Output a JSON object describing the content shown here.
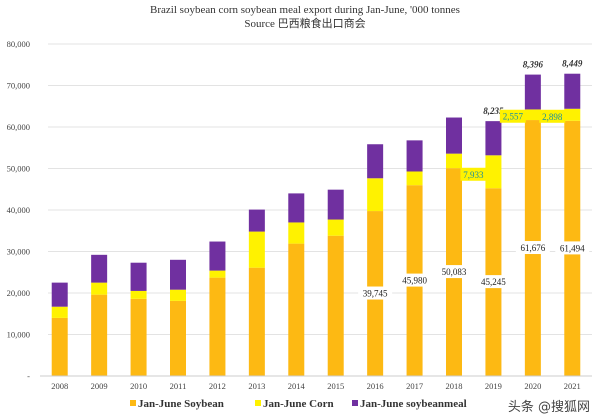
{
  "chart_data": {
    "type": "bar",
    "stacked": true,
    "title": "Brazil soybean corn soybean meal export during Jan-June, '000 tonnes",
    "subtitle": "Source 巴西粮食出口商会",
    "xlabel": "",
    "ylabel": "",
    "ylim": [
      0,
      80000
    ],
    "yticks": [
      0,
      10000,
      20000,
      30000,
      40000,
      50000,
      60000,
      70000,
      80000
    ],
    "ytick_labels": [
      "-",
      "10,000",
      "20,000",
      "30,000",
      "40,000",
      "50,000",
      "60,000",
      "70,000",
      "80,000"
    ],
    "grid": true,
    "legend_placement": "bottom",
    "categories": [
      "2008",
      "2009",
      "2010",
      "2011",
      "2012",
      "2013",
      "2014",
      "2015",
      "2016",
      "2017",
      "2018",
      "2019",
      "2020",
      "2021"
    ],
    "series": [
      {
        "name": "Jan-June Soybean",
        "color": "#FDB913",
        "values": [
          14000,
          19600,
          18600,
          18100,
          23700,
          26100,
          31900,
          33800,
          39745,
          45980,
          50083,
          45245,
          61676,
          61494
        ]
      },
      {
        "name": "Jan-June Corn",
        "color": "#FFF200",
        "values": [
          2700,
          2900,
          1900,
          2700,
          1700,
          8700,
          5100,
          3900,
          7900,
          3300,
          3500,
          7933,
          2557,
          2898
        ]
      },
      {
        "name": "Jan-June soybeanmeal",
        "color": "#7030A0",
        "values": [
          5800,
          6700,
          6800,
          7200,
          7000,
          5300,
          7000,
          7200,
          8200,
          7500,
          8700,
          8235,
          8396,
          8449
        ]
      }
    ],
    "data_labels": {
      "soybean": [
        null,
        null,
        null,
        null,
        null,
        null,
        null,
        null,
        "39,745",
        "45,980",
        "50,083",
        "45,245",
        "61,676",
        "61,494"
      ],
      "corn": [
        null,
        null,
        null,
        null,
        null,
        null,
        null,
        null,
        null,
        null,
        null,
        "7,933",
        "2,557",
        "2,898"
      ],
      "soybeanmeal": [
        null,
        null,
        null,
        null,
        null,
        null,
        null,
        null,
        null,
        null,
        null,
        "8,235",
        "8,396",
        "8,449"
      ]
    }
  },
  "watermark": "头条 @搜狐网"
}
